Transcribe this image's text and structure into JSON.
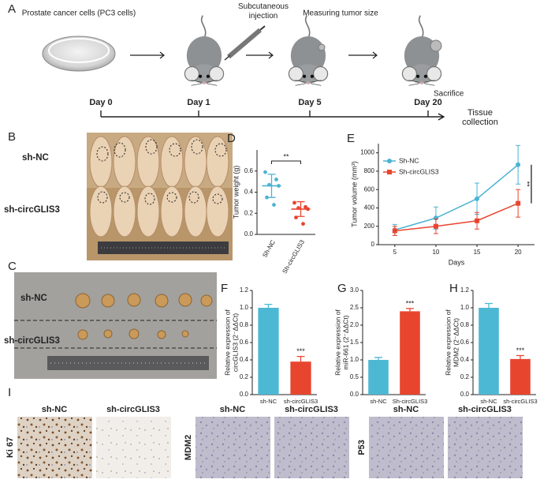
{
  "panel_labels": [
    "A",
    "B",
    "C",
    "D",
    "E",
    "F",
    "G",
    "H",
    "I"
  ],
  "timeline": {
    "steps": [
      "Prostate cancer cells (PC3 cells)",
      "Subcutaneous injection",
      "Measuring tumor size",
      "Sacrifice"
    ],
    "days": [
      "Day 0",
      "Day 1",
      "Day 5",
      "Day 20"
    ],
    "end_label": "Tissue collection"
  },
  "photo_b": {
    "rows": [
      "sh-NC",
      "sh-circGLIS3"
    ]
  },
  "photo_c": {
    "rows": [
      "sh-NC",
      "sh-circGLIS3"
    ]
  },
  "ihc": {
    "markers": [
      "Ki 67",
      "MDM2",
      "P53"
    ],
    "groups": [
      "sh-NC",
      "sh-circGLIS3"
    ]
  },
  "chart_data": [
    {
      "type": "dot",
      "y_label": "Tumor weight (g)",
      "annotation": "**",
      "ylim": [
        0,
        0.8
      ],
      "yticks": [
        {
          "value": 0,
          "label": "0.0"
        },
        0.2,
        0.4,
        0.6
      ],
      "groups": [
        {
          "name": "Sh-NC",
          "color": "#4bb3d3",
          "values": [
            0.59,
            0.52,
            0.47,
            0.46,
            0.35,
            0.28
          ],
          "mean": 0.46,
          "sd": 0.11
        },
        {
          "name": "Sh-circGLIS3",
          "color": "#e8452f",
          "values": [
            0.3,
            0.26,
            0.25,
            0.24,
            0.16,
            0.1
          ],
          "mean": 0.24,
          "sd": 0.07
        }
      ]
    },
    {
      "type": "line",
      "y_label": "Tumor volume (mm³)",
      "x_label": "Days",
      "annotation": "**",
      "legend": "top-left",
      "x": [
        5,
        10,
        15,
        20
      ],
      "xlim": [
        3,
        22
      ],
      "xticks": [
        5,
        10,
        15,
        20
      ],
      "ylim": [
        0,
        1100
      ],
      "yticks": [
        0,
        200,
        400,
        600,
        800,
        1000
      ],
      "series": [
        {
          "name": "Sh-NC",
          "color": "#4bb3d3",
          "marker": "circle",
          "values": [
            160,
            290,
            500,
            870
          ],
          "errors": [
            60,
            120,
            170,
            210
          ]
        },
        {
          "name": "Sh-circGLIS3",
          "color": "#e8452f",
          "marker": "square",
          "values": [
            150,
            200,
            260,
            450
          ],
          "errors": [
            50,
            80,
            90,
            150
          ]
        }
      ]
    },
    {
      "type": "bar",
      "y_label": [
        "Relative expression of",
        "circGLIS3 (2⁻ΔΔCt)"
      ],
      "annotation": "***",
      "categories": [
        "sh-NC",
        "sh-circGLIS3"
      ],
      "values": [
        1.0,
        0.38
      ],
      "errors": [
        0.04,
        0.06
      ],
      "colors": [
        "#4db8d4",
        "#e8452f"
      ],
      "ylim": [
        0,
        1.2
      ],
      "yticks": [
        {
          "value": 0,
          "label": "0.0"
        },
        0.2,
        0.4,
        0.6,
        0.8,
        {
          "value": 1,
          "label": "1.0"
        },
        1.2
      ]
    },
    {
      "type": "bar",
      "y_label": [
        "Relative expression of",
        "miR-661 (2⁻ΔΔCt)"
      ],
      "annotation": "***",
      "categories": [
        "sh-NC",
        "Sh-circGLIS3"
      ],
      "values": [
        1.0,
        2.4
      ],
      "errors": [
        0.07,
        0.08
      ],
      "colors": [
        "#4db8d4",
        "#e8452f"
      ],
      "ylim": [
        0,
        3.0
      ],
      "yticks": [
        {
          "value": 0,
          "label": "0.0"
        },
        0.5,
        {
          "value": 1,
          "label": "1.0"
        },
        1.5,
        {
          "value": 2,
          "label": "2.0"
        },
        2.5,
        {
          "value": 3,
          "label": "3.0"
        }
      ]
    },
    {
      "type": "bar",
      "y_label": [
        "Relative expression of",
        "MDM2 (2⁻ΔΔCt)"
      ],
      "annotation": "***",
      "categories": [
        "sh-NC",
        "sh-circGLIS3"
      ],
      "values": [
        1.0,
        0.41
      ],
      "errors": [
        0.05,
        0.04
      ],
      "colors": [
        "#4db8d4",
        "#e8452f"
      ],
      "ylim": [
        0,
        1.2
      ],
      "yticks": [
        {
          "value": 0,
          "label": "0.0"
        },
        0.2,
        0.4,
        0.6,
        0.8,
        {
          "value": 1,
          "label": "1.0"
        },
        1.2
      ]
    }
  ]
}
